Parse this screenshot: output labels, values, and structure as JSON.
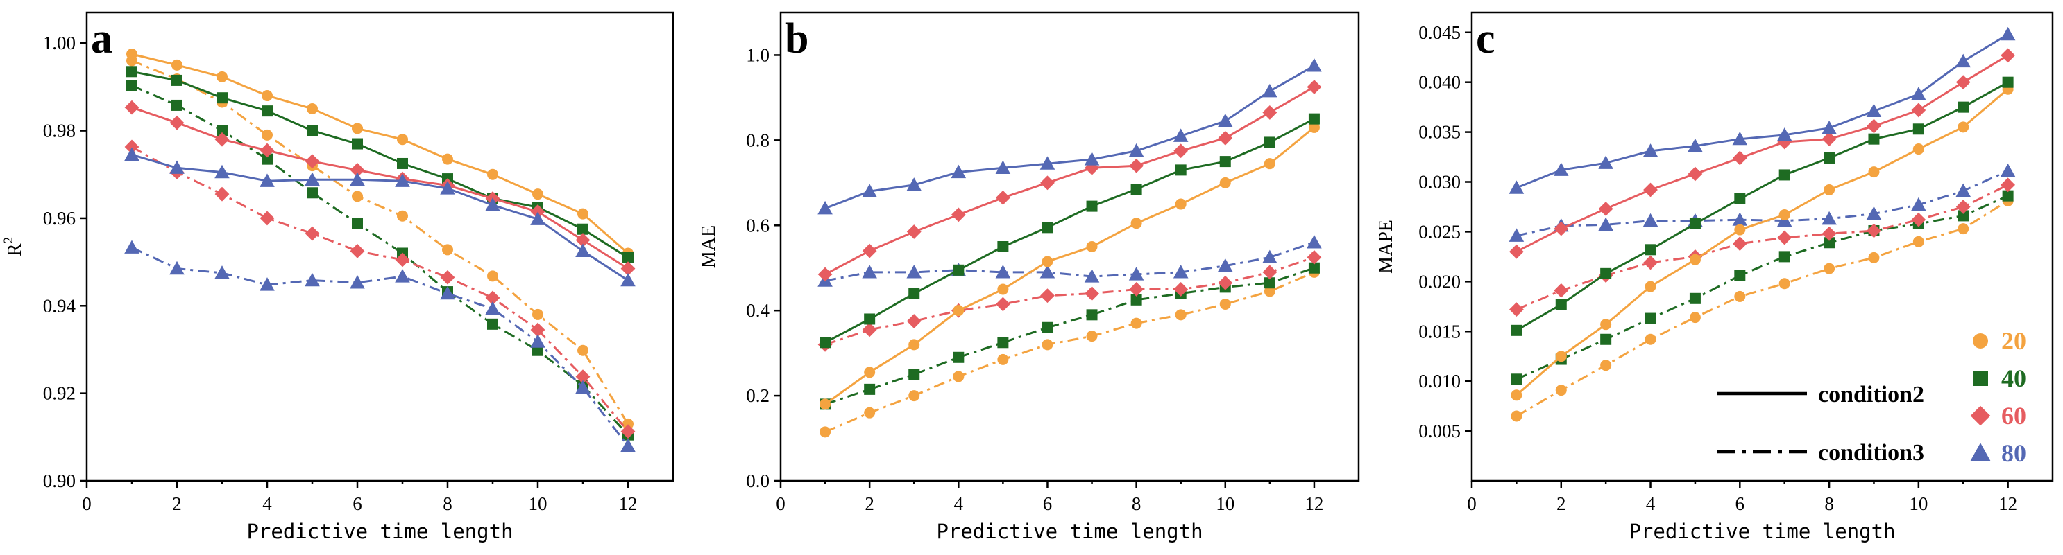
{
  "colors": {
    "20": "#F4A340",
    "40": "#1E6B22",
    "60": "#E65C60",
    "80": "#5468B4"
  },
  "legend": {
    "items": [
      {
        "key": "20",
        "label": "20",
        "marker": "circle"
      },
      {
        "key": "40",
        "label": "40",
        "marker": "square"
      },
      {
        "key": "60",
        "label": "60",
        "marker": "diamond"
      },
      {
        "key": "80",
        "label": "80",
        "marker": "triangle"
      }
    ],
    "styles": [
      {
        "label": "condition2",
        "dash": "solid"
      },
      {
        "label": "condition3",
        "dash": "dashdot"
      }
    ]
  },
  "chart_data": [
    {
      "type": "line",
      "panel": "a",
      "title": "",
      "xlabel": "Predictive time length",
      "ylabel": "R2",
      "ylabel_text": "R",
      "ylabel_sup": "2",
      "x": [
        1,
        2,
        3,
        4,
        5,
        6,
        7,
        8,
        9,
        10,
        11,
        12
      ],
      "xlim": [
        0,
        13
      ],
      "xticks": [
        0,
        2,
        4,
        6,
        8,
        10,
        12
      ],
      "ylim": [
        0.9,
        1.007
      ],
      "yticks": [
        0.9,
        0.92,
        0.94,
        0.96,
        0.98,
        1.0
      ],
      "ytick_labels": [
        "0.90",
        "0.92",
        "0.94",
        "0.96",
        "0.98",
        "1.00"
      ],
      "series": [
        {
          "name": "20",
          "condition": "condition2",
          "values": [
            0.9975,
            0.995,
            0.9923,
            0.988,
            0.985,
            0.9805,
            0.978,
            0.9735,
            0.97,
            0.9655,
            0.961,
            0.952
          ]
        },
        {
          "name": "40",
          "condition": "condition2",
          "values": [
            0.9935,
            0.9915,
            0.9875,
            0.9845,
            0.98,
            0.977,
            0.9725,
            0.969,
            0.9645,
            0.9625,
            0.9575,
            0.951
          ]
        },
        {
          "name": "60",
          "condition": "condition2",
          "values": [
            0.9853,
            0.9818,
            0.978,
            0.9755,
            0.973,
            0.971,
            0.969,
            0.9675,
            0.9645,
            0.9615,
            0.955,
            0.9485
          ]
        },
        {
          "name": "80",
          "condition": "condition2",
          "values": [
            0.9745,
            0.9715,
            0.9705,
            0.9685,
            0.9688,
            0.9688,
            0.9685,
            0.9668,
            0.963,
            0.9598,
            0.9525,
            0.9458
          ]
        },
        {
          "name": "20",
          "condition": "condition3",
          "values": [
            0.996,
            0.9918,
            0.9865,
            0.979,
            0.972,
            0.965,
            0.9605,
            0.9528,
            0.9468,
            0.938,
            0.9298,
            0.913
          ]
        },
        {
          "name": "40",
          "condition": "condition3",
          "values": [
            0.9903,
            0.9858,
            0.98,
            0.9735,
            0.9658,
            0.9588,
            0.952,
            0.9432,
            0.9358,
            0.9298,
            0.9218,
            0.9105
          ]
        },
        {
          "name": "60",
          "condition": "condition3",
          "values": [
            0.9763,
            0.9705,
            0.9655,
            0.96,
            0.9565,
            0.9525,
            0.9505,
            0.9465,
            0.9418,
            0.9345,
            0.9238,
            0.9113
          ]
        },
        {
          "name": "80",
          "condition": "condition3",
          "values": [
            0.9533,
            0.9485,
            0.9475,
            0.9448,
            0.9458,
            0.9453,
            0.9467,
            0.9428,
            0.9393,
            0.9318,
            0.9213,
            0.908
          ]
        }
      ]
    },
    {
      "type": "line",
      "panel": "b",
      "title": "",
      "xlabel": "Predictive time length",
      "ylabel": "MAE",
      "ylabel_text": "MAE",
      "ylabel_sup": "",
      "x": [
        1,
        2,
        3,
        4,
        5,
        6,
        7,
        8,
        9,
        10,
        11,
        12
      ],
      "xlim": [
        0,
        13
      ],
      "xticks": [
        0,
        2,
        4,
        6,
        8,
        10,
        12
      ],
      "ylim": [
        0.0,
        1.1
      ],
      "yticks": [
        0.0,
        0.2,
        0.4,
        0.6,
        0.8,
        1.0
      ],
      "ytick_labels": [
        "0.0",
        "0.2",
        "0.4",
        "0.6",
        "0.8",
        "1.0"
      ],
      "series": [
        {
          "name": "20",
          "condition": "condition2",
          "values": [
            0.18,
            0.255,
            0.32,
            0.4,
            0.45,
            0.515,
            0.55,
            0.605,
            0.65,
            0.7,
            0.745,
            0.83
          ]
        },
        {
          "name": "40",
          "condition": "condition2",
          "values": [
            0.325,
            0.38,
            0.44,
            0.495,
            0.55,
            0.595,
            0.645,
            0.685,
            0.73,
            0.75,
            0.795,
            0.85
          ]
        },
        {
          "name": "60",
          "condition": "condition2",
          "values": [
            0.485,
            0.54,
            0.585,
            0.625,
            0.665,
            0.7,
            0.735,
            0.74,
            0.775,
            0.805,
            0.865,
            0.925
          ]
        },
        {
          "name": "80",
          "condition": "condition2",
          "values": [
            0.64,
            0.68,
            0.695,
            0.725,
            0.735,
            0.745,
            0.755,
            0.775,
            0.81,
            0.845,
            0.915,
            0.975
          ]
        },
        {
          "name": "20",
          "condition": "condition3",
          "values": [
            0.115,
            0.16,
            0.2,
            0.245,
            0.285,
            0.32,
            0.34,
            0.37,
            0.39,
            0.415,
            0.445,
            0.49
          ]
        },
        {
          "name": "40",
          "condition": "condition3",
          "values": [
            0.18,
            0.215,
            0.25,
            0.29,
            0.325,
            0.36,
            0.39,
            0.425,
            0.44,
            0.455,
            0.465,
            0.5
          ]
        },
        {
          "name": "60",
          "condition": "condition3",
          "values": [
            0.32,
            0.355,
            0.375,
            0.4,
            0.415,
            0.435,
            0.44,
            0.45,
            0.45,
            0.465,
            0.49,
            0.525
          ]
        },
        {
          "name": "80",
          "condition": "condition3",
          "values": [
            0.47,
            0.49,
            0.49,
            0.495,
            0.49,
            0.49,
            0.48,
            0.485,
            0.49,
            0.505,
            0.525,
            0.56
          ]
        }
      ]
    },
    {
      "type": "line",
      "panel": "c",
      "title": "",
      "xlabel": "Predictive time length",
      "ylabel": "MAPE",
      "ylabel_text": "MAPE",
      "ylabel_sup": "",
      "x": [
        1,
        2,
        3,
        4,
        5,
        6,
        7,
        8,
        9,
        10,
        11,
        12
      ],
      "xlim": [
        0,
        13
      ],
      "xticks": [
        0,
        2,
        4,
        6,
        8,
        10,
        12
      ],
      "ylim": [
        0.0,
        0.047
      ],
      "yticks": [
        0.005,
        0.01,
        0.015,
        0.02,
        0.025,
        0.03,
        0.035,
        0.04,
        0.045
      ],
      "ytick_labels": [
        "0.005",
        "0.010",
        "0.015",
        "0.020",
        "0.025",
        "0.030",
        "0.035",
        "0.040",
        "0.045"
      ],
      "series": [
        {
          "name": "20",
          "condition": "condition2",
          "values": [
            0.0086,
            0.0125,
            0.0157,
            0.0195,
            0.0222,
            0.0252,
            0.0267,
            0.0292,
            0.031,
            0.0333,
            0.0355,
            0.0393
          ]
        },
        {
          "name": "40",
          "condition": "condition2",
          "values": [
            0.0151,
            0.0177,
            0.0208,
            0.0232,
            0.0258,
            0.0283,
            0.0307,
            0.0324,
            0.0343,
            0.0353,
            0.0375,
            0.04
          ]
        },
        {
          "name": "60",
          "condition": "condition2",
          "values": [
            0.023,
            0.0253,
            0.0273,
            0.0292,
            0.0308,
            0.0324,
            0.034,
            0.0343,
            0.0356,
            0.0372,
            0.04,
            0.0427
          ]
        },
        {
          "name": "80",
          "condition": "condition2",
          "values": [
            0.0294,
            0.0312,
            0.0319,
            0.0331,
            0.0336,
            0.0343,
            0.0347,
            0.0354,
            0.0371,
            0.0388,
            0.0421,
            0.0448
          ]
        },
        {
          "name": "20",
          "condition": "condition3",
          "values": [
            0.0065,
            0.0091,
            0.0116,
            0.0142,
            0.0164,
            0.0185,
            0.0198,
            0.0213,
            0.0224,
            0.024,
            0.0253,
            0.0281
          ]
        },
        {
          "name": "40",
          "condition": "condition3",
          "values": [
            0.0102,
            0.0122,
            0.0142,
            0.0163,
            0.0183,
            0.0206,
            0.0225,
            0.0239,
            0.0251,
            0.0258,
            0.0266,
            0.0286
          ]
        },
        {
          "name": "60",
          "condition": "condition3",
          "values": [
            0.0172,
            0.0191,
            0.0206,
            0.0219,
            0.0225,
            0.0238,
            0.0244,
            0.0248,
            0.0251,
            0.0262,
            0.0275,
            0.0297
          ]
        },
        {
          "name": "80",
          "condition": "condition3",
          "values": [
            0.0246,
            0.0256,
            0.0257,
            0.0261,
            0.0261,
            0.0262,
            0.0261,
            0.0263,
            0.0268,
            0.0277,
            0.0291,
            0.0311
          ]
        }
      ]
    }
  ]
}
